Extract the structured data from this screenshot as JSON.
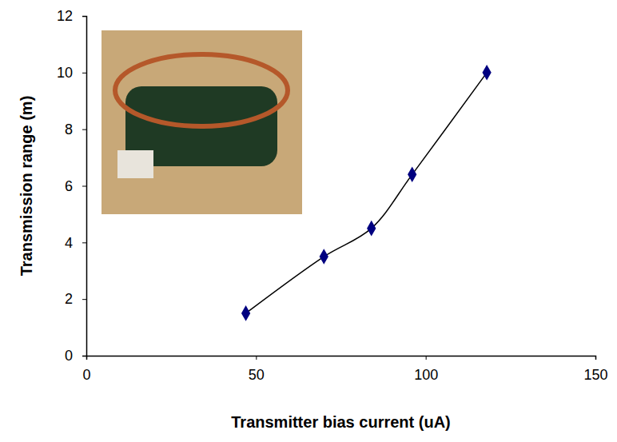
{
  "chart_data": {
    "type": "scatter",
    "x_label": "Transmitter bias current (uA)",
    "y_label": "Transmission range (m)",
    "x": [
      47,
      70,
      84,
      96,
      118
    ],
    "values": [
      1.5,
      3.5,
      4.5,
      6.4,
      10
    ],
    "xlim": [
      0,
      150
    ],
    "xticks": [
      0,
      50,
      100,
      150
    ],
    "ylim": [
      0,
      12
    ],
    "yticks": [
      0,
      2,
      4,
      6,
      8,
      10,
      12
    ],
    "marker": "diamond",
    "line_style": "solid",
    "color": "#000080",
    "grid": false
  }
}
